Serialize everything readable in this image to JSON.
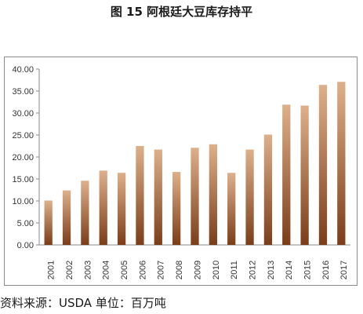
{
  "title": "图 15 阿根廷大豆库存持平",
  "source": "资料来源：USDA 单位：百万吨",
  "chart_data": {
    "type": "bar",
    "categories": [
      "2001",
      "2002",
      "2003",
      "2004",
      "2005",
      "2006",
      "2007",
      "2008",
      "2009",
      "2010",
      "2011",
      "2012",
      "2013",
      "2014",
      "2015",
      "2016",
      "2017"
    ],
    "values": [
      10.1,
      12.4,
      14.6,
      16.9,
      16.4,
      22.5,
      21.7,
      16.6,
      22.1,
      22.9,
      16.4,
      21.7,
      25.1,
      31.9,
      31.7,
      36.4,
      37.1
    ],
    "title": "图 15 阿根廷大豆库存持平",
    "xlabel": "",
    "ylabel": "",
    "ylim": [
      0,
      40
    ],
    "yticks": [
      "0.00",
      "5.00",
      "10.00",
      "15.00",
      "20.00",
      "25.00",
      "30.00",
      "35.00",
      "40.00"
    ],
    "grid": false,
    "legend": "none",
    "bar_color_top": "#ddb08c",
    "bar_color_bottom": "#7a3d1a"
  }
}
